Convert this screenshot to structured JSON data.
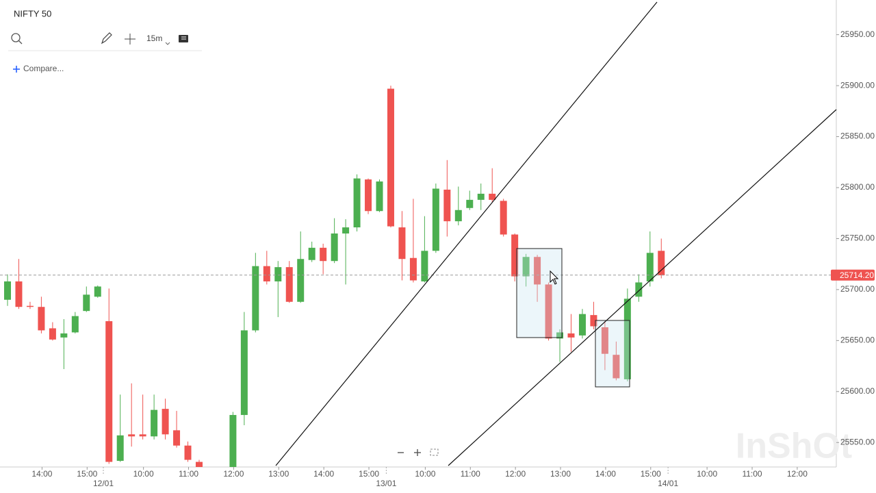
{
  "chart_data": {
    "type": "candlestick",
    "title": "NIFTY 50",
    "toolbar": {
      "interval": "15m",
      "compare": "Compare..."
    },
    "categories": [
      null,
      null,
      null,
      "14:00",
      null,
      null,
      null,
      "15:00",
      null,
      null,
      null,
      null,
      "10:00",
      null,
      null,
      null,
      "11:00",
      null,
      null,
      null,
      "12:00",
      null,
      null,
      null,
      "13:00",
      null,
      null,
      null,
      "14:00",
      null,
      null,
      null,
      "15:00",
      null,
      null,
      null,
      null,
      "10:00",
      null,
      null,
      null,
      "11:00",
      null,
      null,
      null,
      "12:00",
      null,
      null,
      null,
      "13:00",
      null,
      null,
      null,
      "14:00",
      null,
      null,
      null,
      "15:00",
      null,
      null,
      null,
      null,
      "10:00",
      null,
      null,
      null,
      "11:00",
      null,
      null,
      null,
      "12:00"
    ],
    "dates": [
      "12/01",
      "13/01",
      "14/01"
    ],
    "open": [
      25690,
      25708,
      25684,
      25683,
      25662,
      25653,
      25658,
      25679,
      25693,
      25669,
      25532,
      25558,
      25558,
      25556,
      25583,
      25562,
      25547,
      25531,
      null,
      null,
      25526,
      25577,
      25660,
      25723,
      25708,
      25722,
      25688,
      25729,
      25741,
      25728,
      25755,
      25761,
      25808,
      25777,
      25897,
      25761,
      25731,
      25708,
      25738,
      25798,
      25767,
      25780,
      25788,
      25794,
      25787,
      25754,
      25713,
      25732,
      25705,
      25652,
      25657,
      25655,
      25675,
      25663,
      25636,
      25612,
      25693,
      25708,
      25738,
      null,
      null,
      null,
      null,
      null,
      null,
      null,
      null,
      null,
      null,
      null,
      null
    ],
    "high": [
      25715,
      25730,
      25688,
      25693,
      25668,
      25671,
      25678,
      25703,
      25704,
      25701,
      25597,
      25608,
      25597,
      25597,
      25593,
      25581,
      25551,
      25533,
      null,
      null,
      25580,
      25678,
      25736,
      25738,
      25728,
      25728,
      25757,
      25747,
      25745,
      25770,
      25769,
      25813,
      25809,
      25808,
      25900,
      25777,
      25789,
      25772,
      25804,
      25827,
      25801,
      25797,
      25804,
      25819,
      25789,
      25755,
      25735,
      25734,
      25707,
      25661,
      25676,
      25681,
      25688,
      25669,
      25649,
      25701,
      25715,
      25757,
      25750,
      null,
      null,
      null,
      null,
      null,
      null,
      null,
      null,
      null,
      null,
      null,
      null
    ],
    "low": [
      25684,
      25681,
      25681,
      25657,
      25650,
      25622,
      25657,
      25678,
      25692,
      25529,
      25531,
      25546,
      25553,
      25553,
      25553,
      25545,
      25531,
      25526,
      null,
      null,
      25526,
      25567,
      25658,
      25705,
      25673,
      25687,
      25687,
      25727,
      25715,
      25726,
      25705,
      25757,
      25774,
      25776,
      25761,
      25709,
      25707,
      25707,
      25736,
      25752,
      25763,
      25778,
      25778,
      25786,
      25752,
      25708,
      25703,
      25688,
      25650,
      25629,
      25639,
      25652,
      25661,
      25621,
      25611,
      25610,
      25688,
      25703,
      25711,
      null,
      null,
      null,
      null,
      null,
      null,
      null,
      null,
      null,
      null,
      null,
      null
    ],
    "close": [
      25708,
      25683,
      25683,
      25660,
      25651,
      25657,
      25674,
      25695,
      25703,
      25531,
      25557,
      25556,
      25556,
      25582,
      25558,
      25547,
      25533,
      25526,
      null,
      null,
      25577,
      25660,
      25723,
      25708,
      25722,
      25688,
      25730,
      25741,
      25728,
      25755,
      25761,
      25809,
      25777,
      25806,
      25762,
      25730,
      25709,
      25738,
      25799,
      25767,
      25778,
      25788,
      25794,
      25788,
      25754,
      25713,
      25732,
      25705,
      25652,
      25658,
      25653,
      25676,
      25664,
      25637,
      25613,
      25691,
      25707,
      25736,
      25714,
      null,
      null,
      null,
      null,
      null,
      null,
      null,
      null,
      null,
      null,
      null,
      null
    ],
    "up_color": "#4caf50",
    "down_color": "#ef5350",
    "ylim": [
      25526,
      25984
    ],
    "yticks": [
      {
        "value": 25550,
        "label": "25550.00"
      },
      {
        "value": 25600,
        "label": "25600.00"
      },
      {
        "value": 25650,
        "label": "25650.00"
      },
      {
        "value": 25700,
        "label": "25700.00"
      },
      {
        "value": 25750,
        "label": "25750.00"
      },
      {
        "value": 25800,
        "label": "25800.00"
      },
      {
        "value": 25850,
        "label": "25850.00"
      },
      {
        "value": 25900,
        "label": "25900.00"
      },
      {
        "value": 25950,
        "label": "25950.00"
      }
    ],
    "last_price": {
      "value": 25714.2,
      "label": "25714.20"
    },
    "watermark": "InShOt"
  }
}
